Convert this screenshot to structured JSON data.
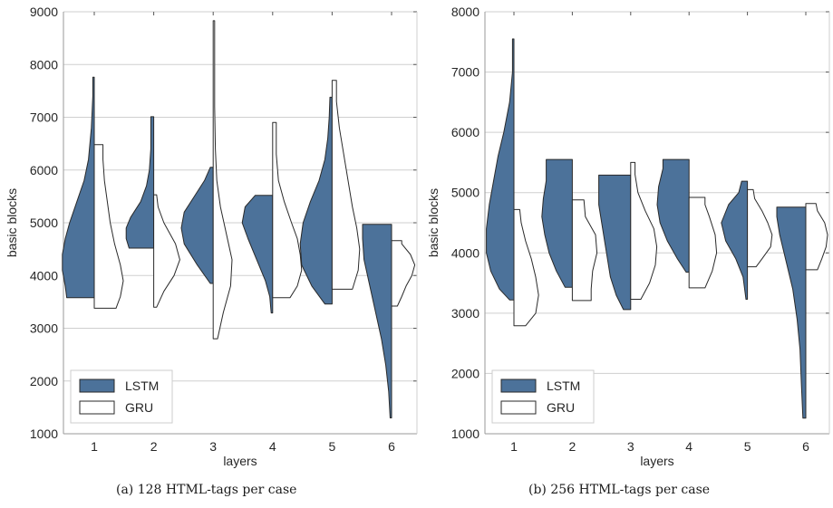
{
  "colors": {
    "lstm": "#4c729a",
    "gru": "#ffffff",
    "edge": "#2a2a2a",
    "grid": "#cfcfcf",
    "axis": "#9a9a9a"
  },
  "captions": [
    "(a) 128 HTML-tags per case",
    "(b) 256 HTML-tags per case"
  ],
  "chart_data": [
    {
      "type": "violin",
      "subtype": "split",
      "xlabel": "layers",
      "ylabel": "basic blocks",
      "ylim": [
        1000,
        9000
      ],
      "yticks": [
        1000,
        2000,
        3000,
        4000,
        5000,
        6000,
        7000,
        8000,
        9000
      ],
      "categories": [
        "1",
        "2",
        "3",
        "4",
        "5",
        "6"
      ],
      "grid": "horizontal",
      "legend_position": "lower-left",
      "series": [
        {
          "name": "LSTM",
          "side": "left",
          "distributions": [
            [
              [
                3580,
                0.38
              ],
              [
                3800,
                0.4
              ],
              [
                4100,
                0.44
              ],
              [
                4400,
                0.44
              ],
              [
                4700,
                0.4
              ],
              [
                5000,
                0.34
              ],
              [
                5400,
                0.24
              ],
              [
                5800,
                0.14
              ],
              [
                6200,
                0.08
              ],
              [
                6800,
                0.04
              ],
              [
                7400,
                0.02
              ],
              [
                7760,
                0.02
              ]
            ],
            [
              [
                4520,
                0.34
              ],
              [
                4700,
                0.38
              ],
              [
                4900,
                0.38
              ],
              [
                5100,
                0.32
              ],
              [
                5400,
                0.18
              ],
              [
                5700,
                0.1
              ],
              [
                6000,
                0.06
              ],
              [
                6400,
                0.04
              ],
              [
                7010,
                0.04
              ]
            ],
            [
              [
                3850,
                0.04
              ],
              [
                4200,
                0.22
              ],
              [
                4600,
                0.4
              ],
              [
                4900,
                0.44
              ],
              [
                5200,
                0.4
              ],
              [
                5500,
                0.26
              ],
              [
                5800,
                0.12
              ],
              [
                6050,
                0.04
              ]
            ],
            [
              [
                3290,
                0.02
              ],
              [
                3600,
                0.04
              ],
              [
                3900,
                0.1
              ],
              [
                4300,
                0.22
              ],
              [
                4700,
                0.34
              ],
              [
                5000,
                0.42
              ],
              [
                5300,
                0.38
              ],
              [
                5520,
                0.24
              ]
            ],
            [
              [
                3460,
                0.1
              ],
              [
                3800,
                0.28
              ],
              [
                4200,
                0.42
              ],
              [
                4600,
                0.44
              ],
              [
                5000,
                0.4
              ],
              [
                5400,
                0.3
              ],
              [
                5800,
                0.18
              ],
              [
                6200,
                0.1
              ],
              [
                6600,
                0.06
              ],
              [
                7000,
                0.04
              ],
              [
                7380,
                0.03
              ]
            ],
            [
              [
                1300,
                0.02
              ],
              [
                1800,
                0.04
              ],
              [
                2300,
                0.08
              ],
              [
                2800,
                0.14
              ],
              [
                3300,
                0.22
              ],
              [
                3800,
                0.3
              ],
              [
                4300,
                0.38
              ],
              [
                4700,
                0.4
              ],
              [
                4970,
                0.4
              ]
            ]
          ]
        },
        {
          "name": "GRU",
          "side": "right",
          "distributions": [
            [
              [
                3380,
                0.3
              ],
              [
                3600,
                0.36
              ],
              [
                3900,
                0.4
              ],
              [
                4200,
                0.36
              ],
              [
                4600,
                0.28
              ],
              [
                5000,
                0.22
              ],
              [
                5400,
                0.18
              ],
              [
                5800,
                0.14
              ],
              [
                6200,
                0.12
              ],
              [
                6480,
                0.12
              ]
            ],
            [
              [
                3400,
                0.04
              ],
              [
                3700,
                0.14
              ],
              [
                4000,
                0.28
              ],
              [
                4300,
                0.36
              ],
              [
                4600,
                0.3
              ],
              [
                5000,
                0.14
              ],
              [
                5300,
                0.06
              ],
              [
                5530,
                0.04
              ]
            ],
            [
              [
                2800,
                0.06
              ],
              [
                3300,
                0.14
              ],
              [
                3800,
                0.24
              ],
              [
                4300,
                0.26
              ],
              [
                4800,
                0.18
              ],
              [
                5300,
                0.1
              ],
              [
                5800,
                0.05
              ],
              [
                6400,
                0.03
              ],
              [
                7200,
                0.02
              ],
              [
                8000,
                0.02
              ],
              [
                8830,
                0.02
              ]
            ],
            [
              [
                3580,
                0.24
              ],
              [
                3800,
                0.34
              ],
              [
                4100,
                0.4
              ],
              [
                4400,
                0.38
              ],
              [
                4700,
                0.34
              ],
              [
                5000,
                0.26
              ],
              [
                5400,
                0.16
              ],
              [
                5800,
                0.08
              ],
              [
                6300,
                0.05
              ],
              [
                6900,
                0.05
              ]
            ],
            [
              [
                3740,
                0.28
              ],
              [
                4100,
                0.36
              ],
              [
                4500,
                0.38
              ],
              [
                4900,
                0.34
              ],
              [
                5300,
                0.28
              ],
              [
                5800,
                0.22
              ],
              [
                6300,
                0.16
              ],
              [
                6800,
                0.1
              ],
              [
                7300,
                0.06
              ],
              [
                7700,
                0.06
              ]
            ],
            [
              [
                3420,
                0.08
              ],
              [
                3600,
                0.14
              ],
              [
                3800,
                0.2
              ],
              [
                4000,
                0.28
              ],
              [
                4200,
                0.32
              ],
              [
                4400,
                0.26
              ],
              [
                4600,
                0.14
              ],
              [
                4660,
                0.14
              ]
            ]
          ]
        }
      ]
    },
    {
      "type": "violin",
      "subtype": "split",
      "xlabel": "layers",
      "ylabel": "basic blocks",
      "ylim": [
        1000,
        8000
      ],
      "yticks": [
        1000,
        2000,
        3000,
        4000,
        5000,
        6000,
        7000,
        8000
      ],
      "categories": [
        "1",
        "2",
        "3",
        "4",
        "5",
        "6"
      ],
      "grid": "horizontal",
      "legend_position": "lower-left",
      "series": [
        {
          "name": "LSTM",
          "side": "left",
          "distributions": [
            [
              [
                3220,
                0.06
              ],
              [
                3400,
                0.2
              ],
              [
                3700,
                0.32
              ],
              [
                4000,
                0.38
              ],
              [
                4400,
                0.38
              ],
              [
                4800,
                0.34
              ],
              [
                5200,
                0.28
              ],
              [
                5600,
                0.22
              ],
              [
                6000,
                0.14
              ],
              [
                6500,
                0.06
              ],
              [
                7000,
                0.02
              ],
              [
                7550,
                0.02
              ]
            ],
            [
              [
                3430,
                0.1
              ],
              [
                3700,
                0.22
              ],
              [
                4000,
                0.32
              ],
              [
                4300,
                0.38
              ],
              [
                4600,
                0.42
              ],
              [
                4900,
                0.4
              ],
              [
                5200,
                0.36
              ],
              [
                5550,
                0.36
              ]
            ],
            [
              [
                3060,
                0.1
              ],
              [
                3300,
                0.2
              ],
              [
                3600,
                0.28
              ],
              [
                3900,
                0.32
              ],
              [
                4200,
                0.36
              ],
              [
                4500,
                0.4
              ],
              [
                4800,
                0.44
              ],
              [
                5100,
                0.44
              ],
              [
                5290,
                0.44
              ]
            ],
            [
              [
                3680,
                0.04
              ],
              [
                3900,
                0.16
              ],
              [
                4200,
                0.3
              ],
              [
                4500,
                0.4
              ],
              [
                4800,
                0.44
              ],
              [
                5100,
                0.42
              ],
              [
                5400,
                0.36
              ],
              [
                5550,
                0.36
              ]
            ],
            [
              [
                3230,
                0.02
              ],
              [
                3600,
                0.06
              ],
              [
                3900,
                0.16
              ],
              [
                4200,
                0.3
              ],
              [
                4500,
                0.36
              ],
              [
                4800,
                0.26
              ],
              [
                5000,
                0.12
              ],
              [
                5190,
                0.08
              ]
            ],
            [
              [
                1260,
                0.04
              ],
              [
                1800,
                0.06
              ],
              [
                2400,
                0.08
              ],
              [
                2900,
                0.12
              ],
              [
                3400,
                0.18
              ],
              [
                3900,
                0.28
              ],
              [
                4300,
                0.36
              ],
              [
                4600,
                0.4
              ],
              [
                4760,
                0.4
              ]
            ]
          ]
        },
        {
          "name": "GRU",
          "side": "right",
          "distributions": [
            [
              [
                2790,
                0.16
              ],
              [
                3000,
                0.3
              ],
              [
                3300,
                0.34
              ],
              [
                3600,
                0.3
              ],
              [
                3900,
                0.24
              ],
              [
                4200,
                0.16
              ],
              [
                4500,
                0.1
              ],
              [
                4720,
                0.08
              ]
            ],
            [
              [
                3210,
                0.26
              ],
              [
                3400,
                0.26
              ],
              [
                3700,
                0.28
              ],
              [
                4000,
                0.34
              ],
              [
                4300,
                0.32
              ],
              [
                4600,
                0.18
              ],
              [
                4880,
                0.16
              ]
            ],
            [
              [
                3230,
                0.14
              ],
              [
                3500,
                0.26
              ],
              [
                3800,
                0.34
              ],
              [
                4100,
                0.36
              ],
              [
                4400,
                0.32
              ],
              [
                4700,
                0.2
              ],
              [
                5000,
                0.1
              ],
              [
                5300,
                0.06
              ],
              [
                5500,
                0.06
              ]
            ],
            [
              [
                3420,
                0.22
              ],
              [
                3700,
                0.32
              ],
              [
                4000,
                0.38
              ],
              [
                4300,
                0.36
              ],
              [
                4600,
                0.28
              ],
              [
                4800,
                0.22
              ],
              [
                4920,
                0.22
              ]
            ],
            [
              [
                3770,
                0.12
              ],
              [
                3900,
                0.2
              ],
              [
                4100,
                0.32
              ],
              [
                4300,
                0.34
              ],
              [
                4500,
                0.28
              ],
              [
                4700,
                0.2
              ],
              [
                4900,
                0.1
              ],
              [
                5050,
                0.08
              ]
            ],
            [
              [
                3720,
                0.16
              ],
              [
                3900,
                0.22
              ],
              [
                4100,
                0.28
              ],
              [
                4300,
                0.3
              ],
              [
                4500,
                0.26
              ],
              [
                4700,
                0.16
              ],
              [
                4820,
                0.14
              ]
            ]
          ]
        }
      ]
    }
  ]
}
